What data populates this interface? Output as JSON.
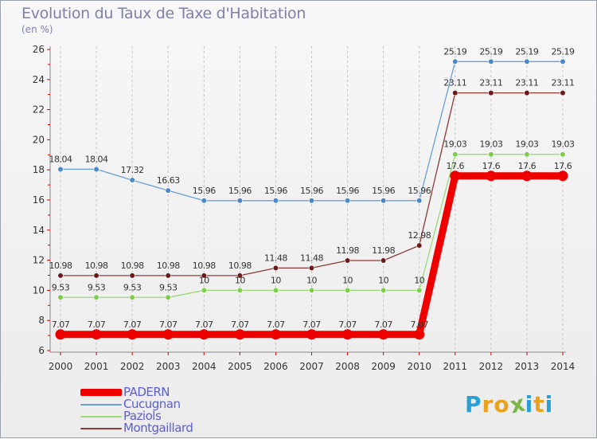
{
  "header": {
    "title": "Evolution du Taux de Taxe d'Habitation",
    "unit": "(en %)"
  },
  "chart_data": {
    "type": "line",
    "title": "Evolution du Taux de Taxe d'Habitation",
    "ylabel": "(en %)",
    "xlabel": "",
    "ylim": [
      6,
      26
    ],
    "yticks": [
      6,
      8,
      10,
      12,
      14,
      16,
      18,
      20,
      22,
      24,
      26
    ],
    "x": [
      "2000",
      "2001",
      "2002",
      "2003",
      "2004",
      "2005",
      "2006",
      "2007",
      "2008",
      "2009",
      "2010",
      "2011",
      "2012",
      "2013",
      "2014"
    ],
    "grid": "dashed-vertical",
    "legend_position": "bottom-left",
    "series": [
      {
        "name": "PADERN",
        "color": "#ee0000",
        "thick": true,
        "values": [
          7.07,
          7.07,
          7.07,
          7.07,
          7.07,
          7.07,
          7.07,
          7.07,
          7.07,
          7.07,
          7.07,
          17.6,
          17.6,
          17.6,
          17.6
        ],
        "labels": [
          "7.07",
          "7.07",
          "7.07",
          "7.07",
          "7.07",
          "7.07",
          "7.07",
          "7.07",
          "7.07",
          "7.07",
          "7.07",
          "17.6",
          "17.6",
          "17.6",
          "17.6"
        ]
      },
      {
        "name": "Cucugnan",
        "color": "#6a9fd8",
        "marker": "#4a88c8",
        "values": [
          18.04,
          18.04,
          17.32,
          16.63,
          15.96,
          15.96,
          15.96,
          15.96,
          15.96,
          15.96,
          15.96,
          25.19,
          25.19,
          25.19,
          25.19
        ],
        "labels": [
          "18.04",
          "18.04",
          "17.32",
          "16.63",
          "15.96",
          "15.96",
          "15.96",
          "15.96",
          "15.96",
          "15.96",
          "15.96",
          "25.19",
          "25.19",
          "25.19",
          "25.19"
        ]
      },
      {
        "name": "Paziols",
        "color": "#9bd97b",
        "marker": "#7ccd4a",
        "values": [
          9.53,
          9.53,
          9.53,
          9.53,
          10,
          10,
          10,
          10,
          10,
          10,
          10,
          19.03,
          19.03,
          19.03,
          19.03
        ],
        "labels": [
          "9.53",
          "9.53",
          "9.53",
          "9.53",
          "10",
          "10",
          "10",
          "10",
          "10",
          "10",
          "10",
          "19.03",
          "19.03",
          "19.03",
          "19.03"
        ]
      },
      {
        "name": "Montgaillard",
        "color": "#8b3a3a",
        "marker": "#6a1a1a",
        "values": [
          10.98,
          10.98,
          10.98,
          10.98,
          10.98,
          10.98,
          11.48,
          11.48,
          11.98,
          11.98,
          12.98,
          23.11,
          23.11,
          23.11,
          23.11
        ],
        "labels": [
          "10.98",
          "10.98",
          "10.98",
          "10.98",
          "10.98",
          "10.98",
          "11.48",
          "11.48",
          "11.98",
          "11.98",
          "12.98",
          "23.11",
          "23.11",
          "23.11",
          "23.11"
        ]
      }
    ]
  },
  "logo": {
    "letters": [
      "P",
      "r",
      "o",
      "x",
      "i",
      "t",
      "i"
    ],
    "colors": [
      "#2a9fd6",
      "#e8a21c",
      "#e8a21c",
      "#7ab648",
      "#2a9fd6",
      "#e8a21c",
      "#2a9fd6"
    ]
  }
}
